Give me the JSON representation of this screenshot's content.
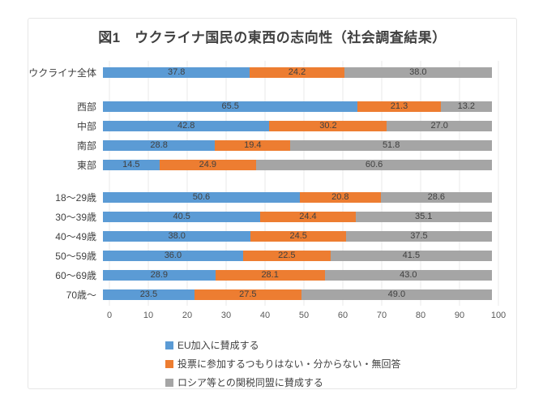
{
  "chart_data": {
    "type": "bar",
    "orientation": "horizontal-stacked",
    "title": "図1　ウクライナ国民の東西の志向性（社会調査結果）",
    "xlabel": "",
    "ylabel": "",
    "xlim": [
      0,
      100
    ],
    "xticks": [
      0,
      10,
      20,
      30,
      40,
      50,
      60,
      70,
      80,
      90,
      100
    ],
    "grid": true,
    "legend_position": "bottom",
    "value_decimals": 1,
    "series": [
      {
        "name": "EU加入に賛成する",
        "color": "#5B9BD5"
      },
      {
        "name": "投票に参加するつもりはない・分からない・無回答",
        "color": "#ED7D31"
      },
      {
        "name": "ロシア等との関税同盟に賛成する",
        "color": "#A5A5A5"
      }
    ],
    "groups": [
      {
        "rows": [
          {
            "label": "ウクライナ全体",
            "values": [
              37.8,
              24.2,
              38.0
            ]
          }
        ]
      },
      {
        "rows": [
          {
            "label": "西部",
            "values": [
              65.5,
              21.3,
              13.2
            ]
          },
          {
            "label": "中部",
            "values": [
              42.8,
              30.2,
              27.0
            ]
          },
          {
            "label": "南部",
            "values": [
              28.8,
              19.4,
              51.8
            ]
          },
          {
            "label": "東部",
            "values": [
              14.5,
              24.9,
              60.6
            ]
          }
        ]
      },
      {
        "rows": [
          {
            "label": "18〜29歳",
            "values": [
              50.6,
              20.8,
              28.6
            ]
          },
          {
            "label": "30〜39歳",
            "values": [
              40.5,
              24.4,
              35.1
            ]
          },
          {
            "label": "40〜49歳",
            "values": [
              38.0,
              24.5,
              37.5
            ]
          },
          {
            "label": "50〜59歳",
            "values": [
              36.0,
              22.5,
              41.5
            ]
          },
          {
            "label": "60〜69歳",
            "values": [
              28.9,
              28.1,
              43.0
            ]
          },
          {
            "label": "70歳〜",
            "values": [
              23.5,
              27.5,
              49.0
            ]
          }
        ]
      }
    ],
    "colors": {
      "grid": "#e8e8e8",
      "border": "#e7e7e7",
      "title_text": "#404040",
      "axis_text": "#595959",
      "label_text": "#404040"
    }
  }
}
